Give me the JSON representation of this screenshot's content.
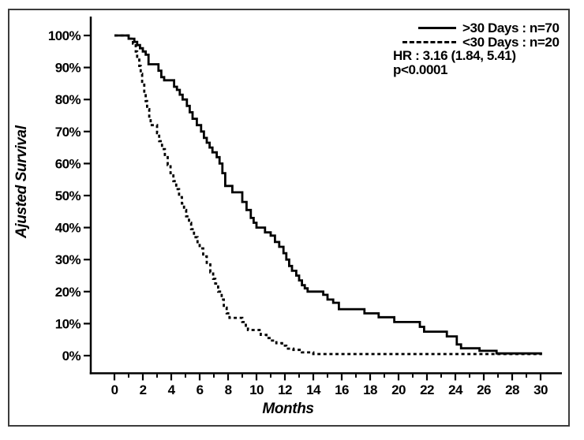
{
  "figure": {
    "background": "#ffffff",
    "border_color": "#3c3c3c",
    "ink_color": "#000000"
  },
  "chart_data": {
    "type": "line",
    "subtype": "kaplan-meier-step-curve",
    "title": "",
    "xlabel": "Months",
    "ylabel": "Ajusted Survival",
    "grid": false,
    "legend_position": "top-right",
    "x_axis": {
      "range": [
        0,
        30
      ],
      "ticks": [
        0,
        2,
        4,
        6,
        8,
        10,
        12,
        14,
        16,
        18,
        20,
        22,
        24,
        26,
        28,
        30
      ],
      "tick_labels": [
        "0",
        "2",
        "4",
        "6",
        "8",
        "10",
        "12",
        "14",
        "16",
        "18",
        "20",
        "22",
        "24",
        "26",
        "28",
        "30"
      ],
      "minor_ticks": [
        1,
        3,
        5,
        7,
        9,
        11,
        13,
        15,
        17,
        19,
        21,
        23,
        25,
        27,
        29
      ]
    },
    "y_axis": {
      "range": [
        0,
        100
      ],
      "ticks": [
        0,
        10,
        20,
        30,
        40,
        50,
        60,
        70,
        80,
        90,
        100
      ],
      "tick_labels": [
        "0%",
        "10%",
        "20%",
        "30%",
        "40%",
        "50%",
        "60%",
        "70%",
        "80%",
        "90%",
        "100%"
      ]
    },
    "annotations": [
      "HR : 3.16 (1.84, 5.41)",
      "p<0.0001"
    ],
    "series": [
      {
        "name": ">30 Days",
        "legend_label": ">30 Days : n=70",
        "n": 70,
        "line_style": "solid",
        "color": "#000000",
        "points": [
          [
            0,
            100
          ],
          [
            1.0,
            99
          ],
          [
            1.4,
            98
          ],
          [
            1.6,
            97
          ],
          [
            1.8,
            96
          ],
          [
            2.0,
            95
          ],
          [
            2.2,
            94
          ],
          [
            2.4,
            91
          ],
          [
            3.1,
            89
          ],
          [
            3.3,
            87
          ],
          [
            3.5,
            86
          ],
          [
            4.2,
            84
          ],
          [
            4.4,
            83
          ],
          [
            4.6,
            81.5
          ],
          [
            4.8,
            80
          ],
          [
            5.1,
            78
          ],
          [
            5.3,
            76
          ],
          [
            5.5,
            74
          ],
          [
            5.8,
            72
          ],
          [
            6.1,
            70
          ],
          [
            6.3,
            68
          ],
          [
            6.5,
            66.5
          ],
          [
            6.7,
            65
          ],
          [
            6.9,
            63.5
          ],
          [
            7.2,
            62
          ],
          [
            7.4,
            60
          ],
          [
            7.6,
            57
          ],
          [
            7.8,
            53
          ],
          [
            8.3,
            51
          ],
          [
            9.0,
            48
          ],
          [
            9.3,
            45.5
          ],
          [
            9.6,
            43
          ],
          [
            9.8,
            41.5
          ],
          [
            10.0,
            40
          ],
          [
            10.6,
            38.5
          ],
          [
            11.0,
            37.5
          ],
          [
            11.3,
            35.5
          ],
          [
            11.6,
            34
          ],
          [
            11.9,
            32
          ],
          [
            12.1,
            30
          ],
          [
            12.3,
            28
          ],
          [
            12.5,
            26.5
          ],
          [
            12.8,
            25
          ],
          [
            13.0,
            23.5
          ],
          [
            13.2,
            22
          ],
          [
            13.4,
            21
          ],
          [
            13.6,
            20
          ],
          [
            14.7,
            19
          ],
          [
            15.0,
            17.5
          ],
          [
            15.4,
            16.5
          ],
          [
            15.8,
            14.5
          ],
          [
            17.6,
            13.2
          ],
          [
            18.6,
            12
          ],
          [
            19.7,
            10.5
          ],
          [
            21.5,
            9
          ],
          [
            21.8,
            7.5
          ],
          [
            23.4,
            6
          ],
          [
            24.1,
            3.5
          ],
          [
            24.4,
            2.3
          ],
          [
            25.7,
            1.5
          ],
          [
            26.9,
            0.7
          ],
          [
            30.1,
            0.7
          ]
        ]
      },
      {
        "name": "<30 Days",
        "legend_label": "<30 Days : n=20",
        "n": 20,
        "line_style": "dashed",
        "color": "#000000",
        "points": [
          [
            0,
            100
          ],
          [
            1.1,
            99
          ],
          [
            1.3,
            97.5
          ],
          [
            1.5,
            95
          ],
          [
            1.6,
            93
          ],
          [
            1.75,
            90.5
          ],
          [
            1.85,
            88
          ],
          [
            1.95,
            85
          ],
          [
            2.1,
            82
          ],
          [
            2.2,
            79.5
          ],
          [
            2.3,
            77
          ],
          [
            2.45,
            74
          ],
          [
            2.55,
            72
          ],
          [
            3.0,
            69.5
          ],
          [
            3.15,
            67
          ],
          [
            3.35,
            64.5
          ],
          [
            3.55,
            62
          ],
          [
            3.75,
            59.5
          ],
          [
            3.95,
            57
          ],
          [
            4.15,
            54.5
          ],
          [
            4.35,
            52
          ],
          [
            4.55,
            49.5
          ],
          [
            4.75,
            47.5
          ],
          [
            4.9,
            45.5
          ],
          [
            5.05,
            43.5
          ],
          [
            5.25,
            41.5
          ],
          [
            5.4,
            39.5
          ],
          [
            5.6,
            37
          ],
          [
            5.85,
            35
          ],
          [
            6.0,
            33.5
          ],
          [
            6.25,
            31
          ],
          [
            6.5,
            28.5
          ],
          [
            6.75,
            26
          ],
          [
            6.95,
            24
          ],
          [
            7.1,
            22.5
          ],
          [
            7.3,
            20
          ],
          [
            7.55,
            17.5
          ],
          [
            7.7,
            15
          ],
          [
            7.9,
            13.2
          ],
          [
            8.1,
            11.8
          ],
          [
            9.0,
            10.5
          ],
          [
            9.25,
            9
          ],
          [
            9.4,
            8
          ],
          [
            10.3,
            6.5
          ],
          [
            10.7,
            5.5
          ],
          [
            11.0,
            4.7
          ],
          [
            11.4,
            3.9
          ],
          [
            11.8,
            3.1
          ],
          [
            12.1,
            2.2
          ],
          [
            12.6,
            1.8
          ],
          [
            13.2,
            1.0
          ],
          [
            14.0,
            0.5
          ],
          [
            30.1,
            0.5
          ]
        ]
      }
    ]
  }
}
